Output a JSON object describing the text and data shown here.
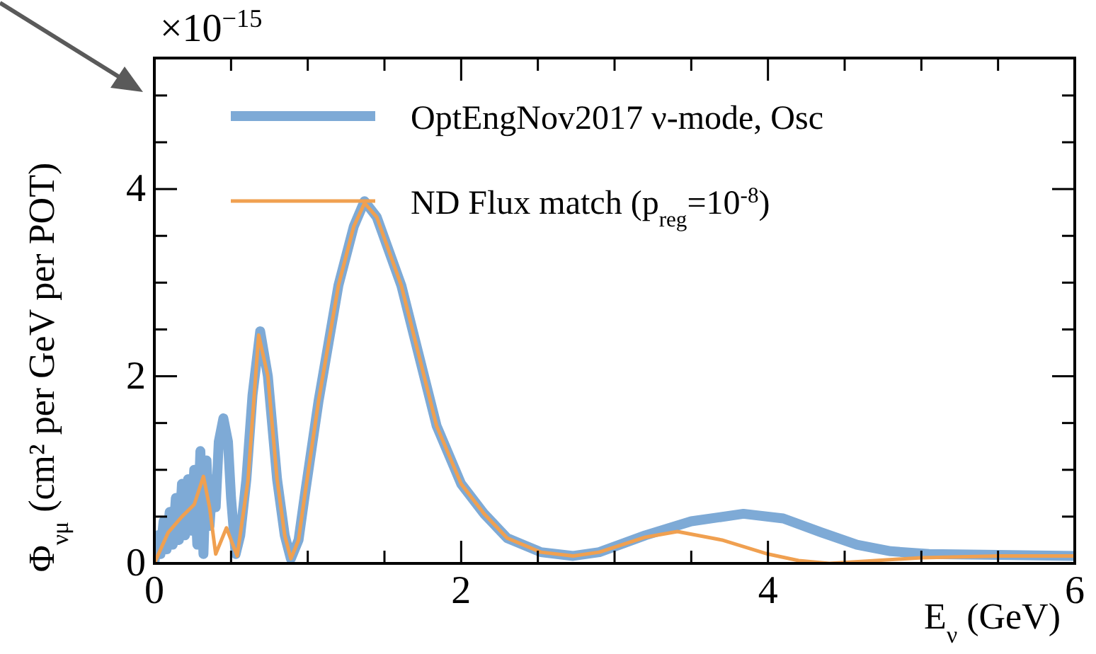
{
  "chart_data": {
    "type": "line",
    "xlabel": "E$_{ν}$ (GeV)",
    "ylabel": "Φ$_{νμ}$ (cm² per GeV per POT)",
    "annotations": [
      "×10$^{−15}$"
    ],
    "xlim": [
      0,
      6
    ],
    "ylim": [
      0,
      5.4
    ],
    "xticks": [
      0,
      {
        "value": 0.5,
        "label": null
      },
      {
        "value": 1,
        "label": null
      },
      {
        "value": 1.5,
        "label": null
      },
      2,
      {
        "value": 2.5,
        "label": null
      },
      {
        "value": 3,
        "label": null
      },
      {
        "value": 3.5,
        "label": null
      },
      4,
      {
        "value": 4.5,
        "label": null
      },
      {
        "value": 5,
        "label": null
      },
      {
        "value": 5.5,
        "label": null
      },
      6
    ],
    "yticks": [
      0,
      {
        "value": 0.5,
        "label": null
      },
      {
        "value": 1,
        "label": null
      },
      {
        "value": 1.5,
        "label": null
      },
      2,
      {
        "value": 2.5,
        "label": null
      },
      {
        "value": 3,
        "label": null
      },
      {
        "value": 3.5,
        "label": null
      },
      4,
      {
        "value": 4.5,
        "label": null
      },
      {
        "value": 5,
        "label": null
      }
    ],
    "grid": false,
    "legend": "top",
    "line_style": "solid",
    "marker": "none",
    "series": [
      {
        "name": "OptEngNov2017 ν-mode, Osc",
        "color": "#7eaad6",
        "x": [
          0,
          0.02,
          0.04,
          0.06,
          0.08,
          0.1,
          0.12,
          0.14,
          0.16,
          0.18,
          0.2,
          0.22,
          0.24,
          0.26,
          0.28,
          0.3,
          0.32,
          0.34,
          0.36,
          0.38,
          0.4,
          0.42,
          0.45,
          0.48,
          0.5,
          0.53,
          0.56,
          0.6,
          0.64,
          0.69,
          0.74,
          0.8,
          0.85,
          0.89,
          0.94,
          0.98,
          1.07,
          1.2,
          1.3,
          1.37,
          1.45,
          1.61,
          1.84,
          2.0,
          2.15,
          2.3,
          2.52,
          2.73,
          2.9,
          3.2,
          3.5,
          3.84,
          4.1,
          4.35,
          4.58,
          4.8,
          5.05,
          5.5,
          6
        ],
        "values": [
          0,
          0.3,
          0.1,
          0.45,
          0.15,
          0.55,
          0.2,
          0.7,
          0.25,
          0.85,
          0.3,
          0.9,
          0.35,
          1.0,
          0.2,
          1.2,
          0.1,
          1.1,
          0.4,
          0.9,
          0.6,
          1.3,
          1.55,
          1.3,
          0.7,
          0.1,
          0.3,
          0.9,
          1.8,
          2.48,
          2.0,
          0.9,
          0.3,
          0.05,
          0.25,
          0.72,
          1.73,
          2.97,
          3.6,
          3.87,
          3.7,
          2.97,
          1.47,
          0.85,
          0.53,
          0.27,
          0.12,
          0.08,
          0.12,
          0.3,
          0.45,
          0.53,
          0.48,
          0.33,
          0.2,
          0.13,
          0.1,
          0.09,
          0.08
        ]
      },
      {
        "name": "ND Flux match (p$_{reg}$=10$^{-8}$)",
        "color": "#f0a050",
        "x": [
          0,
          0.09,
          0.18,
          0.26,
          0.32,
          0.36,
          0.4,
          0.47,
          0.54,
          0.61,
          0.68,
          0.74,
          0.8,
          0.85,
          0.89,
          0.94,
          0.98,
          1.07,
          1.2,
          1.3,
          1.37,
          1.45,
          1.61,
          1.84,
          2.0,
          2.15,
          2.3,
          2.52,
          2.73,
          2.9,
          3.2,
          3.41,
          3.7,
          4.0,
          4.2,
          4.4,
          4.7,
          5.0,
          5.5,
          6
        ],
        "values": [
          0,
          0.33,
          0.5,
          0.63,
          0.93,
          0.6,
          0.1,
          0.38,
          0.08,
          0.88,
          2.44,
          2.0,
          0.9,
          0.3,
          0.05,
          0.25,
          0.72,
          1.73,
          2.97,
          3.6,
          3.85,
          3.7,
          2.97,
          1.47,
          0.85,
          0.53,
          0.27,
          0.12,
          0.08,
          0.12,
          0.28,
          0.34,
          0.25,
          0.1,
          0.03,
          0,
          0.03,
          0.06,
          0.08,
          0.08
        ]
      }
    ]
  }
}
